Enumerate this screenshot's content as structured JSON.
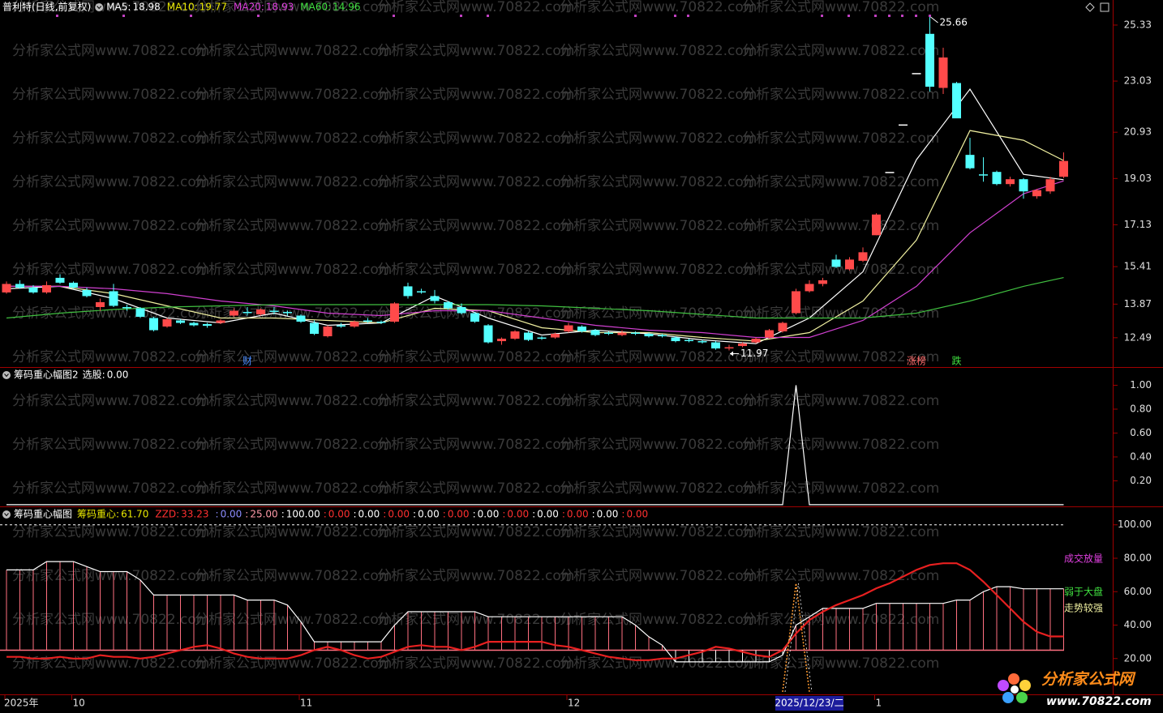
{
  "header": {
    "title": "普利特(日线,前复权)",
    "watermark": "分析家公式网www.70822.com",
    "logo_title": "分析家公式网",
    "logo_url": "www.70822.com"
  },
  "x_axis": [
    {
      "index": 0,
      "label": "2025年"
    },
    {
      "index": 5,
      "label": "10"
    },
    {
      "index": 22,
      "label": "11"
    },
    {
      "index": 42,
      "label": "12"
    },
    {
      "index": 60,
      "label": "2025/12/23/二"
    },
    {
      "index": 65,
      "label": "1"
    }
  ],
  "chart_data": [
    {
      "type": "candlestick",
      "up_color": "#ff4a4a",
      "down_color": "#54ffff",
      "flat_color": "#ffffff",
      "ylim": [
        11.32,
        26.36
      ],
      "yticks": [
        25.33,
        23.03,
        20.93,
        19.03,
        17.13,
        15.41,
        13.87,
        12.49
      ],
      "open": [
        14.35,
        14.7,
        14.55,
        14.35,
        14.95,
        14.75,
        14.45,
        13.75,
        14.4,
        13.75,
        13.7,
        13.3,
        12.95,
        13.2,
        13.1,
        13.05,
        13.1,
        13.4,
        13.55,
        13.45,
        13.6,
        13.55,
        13.4,
        13.1,
        12.55,
        13.0,
        12.95,
        13.2,
        13.15,
        13.15,
        14.6,
        14.4,
        14.2,
        13.95,
        13.75,
        13.5,
        13.0,
        12.35,
        12.45,
        12.7,
        12.5,
        12.5,
        12.75,
        12.95,
        12.8,
        12.7,
        12.6,
        12.7,
        12.65,
        12.6,
        12.5,
        12.4,
        12.35,
        12.3,
        12.05,
        12.15,
        12.3,
        12.5,
        12.75,
        13.5,
        14.4,
        14.7,
        15.7,
        15.3,
        15.65,
        16.7,
        19.3,
        21.25,
        23.36,
        24.97,
        22.75,
        22.95,
        20.0,
        19.2,
        19.3,
        18.8,
        19.0,
        18.3,
        18.5,
        19.1
      ],
      "high": [
        14.8,
        14.85,
        14.65,
        14.8,
        15.1,
        14.8,
        14.55,
        14.1,
        14.7,
        13.85,
        13.75,
        13.35,
        13.3,
        13.25,
        13.15,
        13.1,
        13.25,
        13.7,
        13.75,
        13.7,
        13.75,
        13.6,
        13.45,
        13.2,
        13.0,
        13.1,
        13.2,
        13.3,
        13.2,
        13.95,
        14.75,
        14.5,
        14.45,
        14.0,
        13.9,
        13.55,
        13.05,
        12.5,
        12.8,
        12.75,
        12.55,
        12.7,
        13.1,
        13.0,
        12.85,
        12.75,
        12.8,
        12.75,
        12.7,
        12.65,
        12.55,
        12.45,
        12.4,
        12.35,
        12.2,
        12.3,
        12.5,
        12.85,
        13.15,
        14.5,
        14.85,
        14.95,
        15.9,
        15.8,
        16.2,
        17.6,
        19.3,
        21.25,
        23.36,
        25.66,
        24.4,
        23.0,
        20.7,
        19.9,
        19.35,
        19.1,
        19.05,
        18.6,
        19.1,
        20.1
      ],
      "low": [
        14.3,
        14.5,
        14.3,
        14.3,
        14.7,
        14.5,
        14.15,
        13.6,
        13.75,
        13.6,
        13.3,
        12.75,
        12.9,
        13.05,
        12.95,
        12.9,
        13.05,
        13.35,
        13.4,
        13.4,
        13.45,
        13.4,
        13.1,
        12.6,
        12.5,
        12.9,
        12.9,
        13.1,
        13.05,
        13.1,
        14.1,
        14.3,
        13.9,
        13.65,
        13.45,
        13.1,
        12.25,
        12.2,
        12.4,
        12.35,
        12.4,
        12.45,
        12.7,
        12.7,
        12.55,
        12.6,
        12.55,
        12.6,
        12.5,
        12.5,
        12.3,
        12.3,
        12.25,
        12.0,
        11.97,
        12.1,
        12.25,
        12.45,
        12.7,
        13.45,
        14.35,
        14.6,
        15.35,
        15.25,
        15.6,
        16.7,
        19.3,
        21.25,
        23.36,
        22.6,
        22.5,
        21.5,
        19.4,
        18.9,
        18.75,
        18.7,
        18.2,
        18.2,
        18.4,
        19.05
      ],
      "close": [
        14.7,
        14.55,
        14.35,
        14.65,
        14.75,
        14.55,
        14.2,
        13.95,
        13.8,
        13.7,
        13.35,
        12.8,
        13.25,
        13.1,
        13.0,
        12.98,
        13.2,
        13.6,
        13.5,
        13.65,
        13.55,
        13.5,
        13.15,
        12.65,
        12.95,
        12.95,
        13.15,
        13.15,
        13.1,
        13.9,
        14.2,
        14.35,
        14.0,
        13.7,
        13.5,
        13.15,
        12.3,
        12.45,
        12.75,
        12.4,
        12.45,
        12.65,
        13.0,
        12.75,
        12.6,
        12.65,
        12.7,
        12.65,
        12.55,
        12.55,
        12.35,
        12.35,
        12.3,
        12.05,
        12.1,
        12.25,
        12.45,
        12.8,
        13.1,
        14.4,
        14.7,
        14.85,
        15.4,
        15.7,
        16.0,
        17.55,
        19.3,
        21.25,
        23.36,
        22.8,
        24.0,
        21.5,
        19.45,
        19.15,
        18.8,
        19.0,
        18.5,
        18.55,
        19.0,
        19.75
      ],
      "high_label": "25.66",
      "low_label": "11.97",
      "annotations": [
        {
          "text": "财",
          "index": 18,
          "color": "#4a8cff"
        },
        {
          "text": "涨榜",
          "index": 68,
          "color": "#ff6a6a"
        },
        {
          "text": "跌",
          "index": 71,
          "color": "#40e040"
        }
      ],
      "series": [
        {
          "name": "MA5:",
          "legend_value": "18.98",
          "color": "#ffffff",
          "x": [
            0,
            4,
            8,
            12,
            16,
            20,
            24,
            28,
            32,
            36,
            40,
            44,
            48,
            52,
            56,
            60,
            64,
            68,
            72,
            76,
            79
          ],
          "values": [
            14.5,
            14.6,
            14.1,
            13.3,
            13.1,
            13.5,
            13.0,
            13.1,
            14.2,
            13.3,
            12.6,
            12.8,
            12.65,
            12.4,
            12.25,
            13.3,
            15.2,
            19.8,
            22.7,
            19.2,
            18.98
          ]
        },
        {
          "name": "MA10:",
          "legend_value": "19.77",
          "color": "#f0f0a0",
          "legend_color": "#e8e800",
          "x": [
            0,
            4,
            8,
            12,
            16,
            20,
            24,
            28,
            32,
            36,
            40,
            44,
            48,
            52,
            56,
            60,
            64,
            68,
            72,
            76,
            79
          ],
          "values": [
            14.6,
            14.6,
            14.3,
            13.8,
            13.3,
            13.3,
            13.2,
            13.1,
            13.7,
            13.6,
            12.9,
            12.7,
            12.7,
            12.5,
            12.35,
            12.7,
            14.0,
            16.5,
            21.0,
            20.6,
            19.77
          ]
        },
        {
          "name": "MA20:",
          "legend_value": "18.93",
          "color": "#d040d0",
          "legend_color": "#e040e0",
          "x": [
            0,
            4,
            8,
            12,
            16,
            20,
            24,
            28,
            32,
            36,
            40,
            44,
            48,
            52,
            56,
            60,
            64,
            68,
            72,
            76,
            79
          ],
          "values": [
            14.6,
            14.6,
            14.5,
            14.3,
            14.0,
            13.8,
            13.5,
            13.4,
            13.6,
            13.6,
            13.3,
            13.0,
            12.8,
            12.7,
            12.5,
            12.5,
            13.2,
            14.6,
            16.8,
            18.4,
            18.93
          ]
        },
        {
          "name": "MA60:",
          "legend_value": "14.96",
          "color": "#40c040",
          "legend_color": "#40e040",
          "x": [
            0,
            4,
            8,
            12,
            16,
            20,
            24,
            28,
            32,
            36,
            40,
            44,
            48,
            52,
            56,
            60,
            64,
            68,
            72,
            76,
            79
          ],
          "values": [
            13.3,
            13.5,
            13.65,
            13.75,
            13.8,
            13.85,
            13.85,
            13.85,
            13.85,
            13.85,
            13.8,
            13.7,
            13.6,
            13.45,
            13.3,
            13.3,
            13.3,
            13.5,
            14.0,
            14.6,
            14.96
          ]
        }
      ]
    },
    {
      "type": "line",
      "title": "筹码重心幅图2",
      "ylim": [
        -0.014,
        1.139
      ],
      "yticks": [
        {
          "value": 1,
          "label": "1.00"
        },
        {
          "value": 0.8,
          "label": "0.80"
        },
        {
          "value": 0.6,
          "label": "0.60"
        },
        {
          "value": 0.4,
          "label": "0.40"
        },
        {
          "value": 0.2,
          "label": "0.20"
        }
      ],
      "series": [
        {
          "name": "选股:",
          "legend_value": "0.00",
          "color": "#ffffff",
          "values": [
            0,
            0,
            0,
            0,
            0,
            0,
            0,
            0,
            0,
            0,
            0,
            0,
            0,
            0,
            0,
            0,
            0,
            0,
            0,
            0,
            0,
            0,
            0,
            0,
            0,
            0,
            0,
            0,
            0,
            0,
            0,
            0,
            0,
            0,
            0,
            0,
            0,
            0,
            0,
            0,
            0,
            0,
            0,
            0,
            0,
            0,
            0,
            0,
            0,
            0,
            0,
            0,
            0,
            0,
            0,
            0,
            0,
            0,
            0,
            1,
            0,
            0,
            0,
            0,
            0,
            0,
            0,
            0,
            0,
            0,
            0,
            0,
            0,
            0,
            0,
            0,
            0,
            0,
            0,
            0
          ]
        }
      ]
    },
    {
      "type": "indicator",
      "title": "筹码重心幅图",
      "ylim": [
        -1.45,
        110.06
      ],
      "yticks": [
        {
          "value": 100,
          "label": "100.00"
        },
        {
          "value": 80,
          "label": "80.00"
        },
        {
          "value": 60,
          "label": "60.00"
        },
        {
          "value": 40,
          "label": "40.00"
        },
        {
          "value": 20,
          "label": "20.00"
        }
      ],
      "ref_lines": [
        {
          "value": 100,
          "color": "#ffffff",
          "dashed": true
        },
        {
          "value": 25,
          "color": "#ff7080",
          "dashed": false
        }
      ],
      "series": [
        {
          "name": "筹码重心:",
          "legend_value": "61.70",
          "style": "sticks",
          "color": "#ffffff",
          "legend_color": "#e8e800",
          "stick_color": "#ff7080",
          "stick_low_color": "#ffffff",
          "values": [
            73,
            73,
            73,
            78,
            78,
            78,
            75,
            72,
            72,
            72,
            67,
            58,
            58,
            58,
            58,
            58,
            58,
            58,
            55,
            55,
            55,
            52,
            42,
            30,
            30,
            30,
            30,
            30,
            30,
            40,
            48,
            48,
            48,
            48,
            48,
            48,
            45,
            45,
            45,
            45,
            45,
            45,
            45,
            45,
            45,
            45,
            45,
            40,
            33,
            28,
            18,
            18,
            18,
            18,
            18,
            18,
            18,
            18,
            22,
            40,
            45,
            50,
            50,
            50,
            50,
            53,
            53,
            53,
            53,
            53,
            53,
            55,
            55,
            60,
            63,
            63,
            61.7,
            61.7,
            61.7,
            61.7
          ]
        },
        {
          "name": "ZZD:",
          "legend_value": "33.23",
          "style": "line",
          "color": "#e82020",
          "legend_color": "#ff3030",
          "values": [
            21,
            21,
            20,
            20,
            21,
            20,
            20,
            22,
            21,
            21,
            20,
            21,
            23,
            25,
            27,
            28,
            26,
            23,
            21,
            20,
            20,
            20,
            22,
            25,
            27,
            25,
            22,
            20,
            21,
            24,
            27,
            28,
            27,
            27,
            25,
            27,
            30,
            30,
            30,
            30,
            30,
            28,
            27,
            25,
            23,
            21,
            20,
            19,
            19,
            20,
            20,
            22,
            24,
            27,
            26,
            24,
            22,
            21,
            25,
            35,
            43,
            48,
            52,
            55,
            58,
            62,
            65,
            69,
            73,
            76,
            77,
            77,
            73,
            66,
            58,
            50,
            42,
            36,
            33.23,
            33.23
          ]
        },
        {
          "style": "dotted",
          "color": "#ff9a30",
          "x": [
            58,
            59,
            60
          ],
          "values": [
            0,
            65,
            0
          ]
        }
      ],
      "extra_legend": [
        {
          "label": ":",
          "value": "0.00",
          "color": "#8c8cff"
        },
        {
          "label": ":",
          "value": "25.00",
          "color": "#ff9aa8"
        },
        {
          "label": ":",
          "value": "100.00",
          "color": "#ffffff"
        },
        {
          "label": ":",
          "value": "0.00",
          "color": "#ff3030"
        },
        {
          "label": ":",
          "value": "0.00",
          "color": "#ffffff"
        },
        {
          "label": ":",
          "value": "0.00",
          "color": "#ff3030"
        },
        {
          "label": ":",
          "value": "0.00",
          "color": "#ffffff"
        },
        {
          "label": ":",
          "value": "0.00",
          "color": "#ff3030"
        },
        {
          "label": ":",
          "value": "0.00",
          "color": "#ffffff"
        },
        {
          "label": ":",
          "value": "0.00",
          "color": "#ff3030"
        },
        {
          "label": ":",
          "value": "0.00",
          "color": "#ffffff"
        },
        {
          "label": ":",
          "value": "0.00",
          "color": "#ff3030"
        },
        {
          "label": ":",
          "value": "0.00",
          "color": "#ffffff"
        },
        {
          "label": ":",
          "value": "0.00",
          "color": "#ff3030"
        }
      ],
      "right_labels": [
        {
          "text": "成交放量",
          "color": "#e040e0"
        },
        {
          "text": "弱于大盘",
          "color": "#40e040"
        },
        {
          "text": "走势较强",
          "color": "#f0f0a0"
        }
      ]
    }
  ]
}
